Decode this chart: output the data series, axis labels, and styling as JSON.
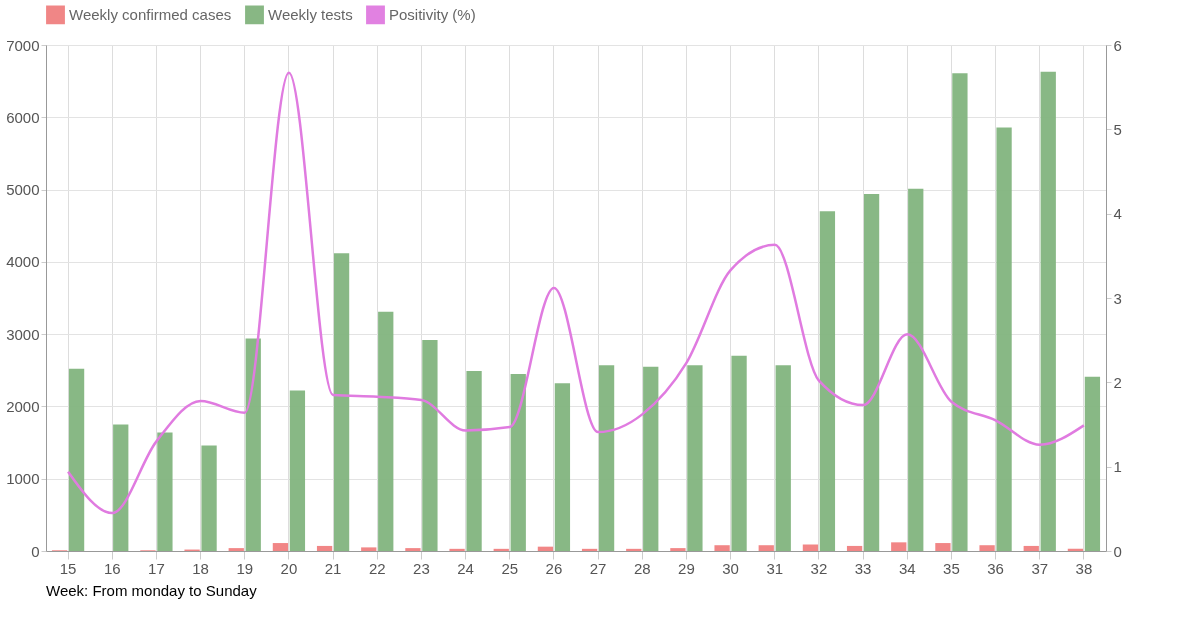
{
  "chart_data": {
    "type": "bar",
    "categories": [
      "15",
      "16",
      "17",
      "18",
      "19",
      "20",
      "21",
      "22",
      "23",
      "24",
      "25",
      "26",
      "27",
      "28",
      "29",
      "30",
      "31",
      "32",
      "33",
      "34",
      "35",
      "36",
      "37",
      "38"
    ],
    "series": [
      {
        "name": "Weekly confirmed cases",
        "color": "#f08080",
        "values": [
          10,
          0,
          10,
          20,
          40,
          110,
          70,
          50,
          40,
          30,
          30,
          60,
          30,
          30,
          40,
          80,
          80,
          90,
          70,
          120,
          110,
          80,
          70,
          30
        ]
      },
      {
        "name": "Weekly tests",
        "color": "#82b47e",
        "values": [
          2520,
          1750,
          1640,
          1460,
          2940,
          2220,
          4120,
          3310,
          2920,
          2490,
          2450,
          2320,
          2570,
          2550,
          2570,
          2700,
          2570,
          4700,
          4940,
          5010,
          6610,
          5860,
          6630,
          2410
        ]
      },
      {
        "name": "Positivity (%)",
        "type": "line",
        "axis": "y2",
        "color": "#e07be0",
        "values": [
          0.94,
          0.45,
          1.3,
          1.78,
          1.64,
          5.67,
          1.85,
          1.83,
          1.79,
          1.43,
          1.47,
          3.12,
          1.41,
          1.62,
          2.23,
          3.33,
          3.63,
          2.02,
          1.73,
          2.57,
          1.77,
          1.55,
          1.26,
          1.49
        ]
      }
    ],
    "ylim": [
      0,
      7000
    ],
    "yticks": [
      0,
      1000,
      2000,
      3000,
      4000,
      5000,
      6000,
      7000
    ],
    "y2lim": [
      0,
      6
    ],
    "y2ticks": [
      0,
      1,
      2,
      3,
      4,
      5,
      6
    ],
    "grid": true,
    "legend": "top",
    "marker": "none",
    "line_style": "solid",
    "annotations": [
      "Week: From monday to Sunday"
    ]
  }
}
